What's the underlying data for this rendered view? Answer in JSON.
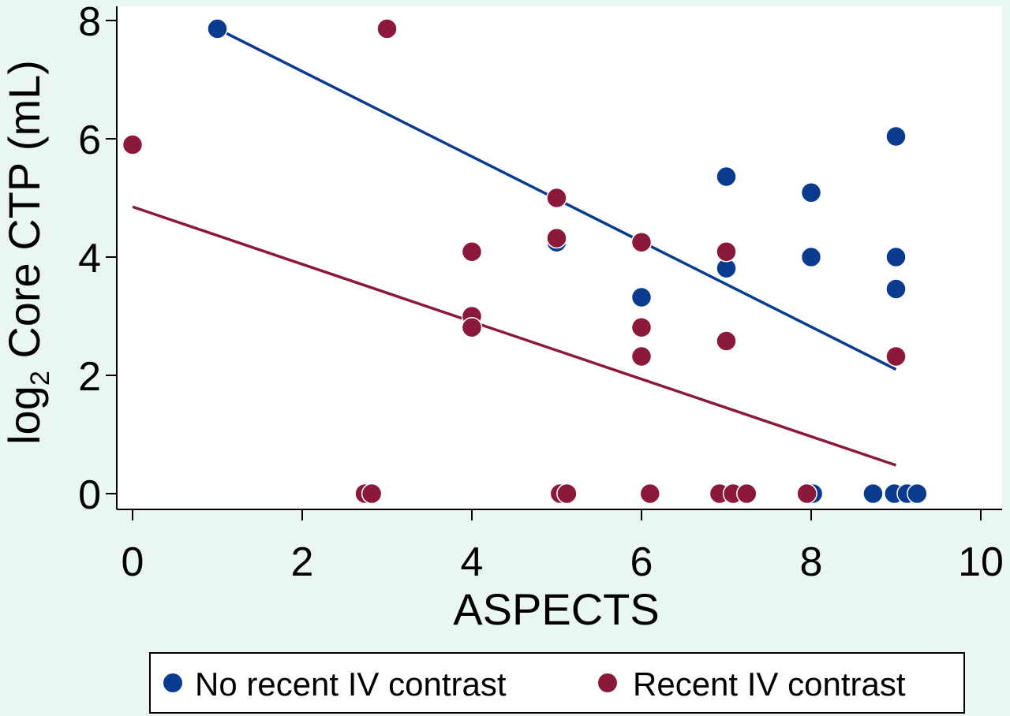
{
  "chart_data": {
    "type": "scatter",
    "xlabel": "ASPECTS",
    "ylabel": {
      "prefix": "log",
      "subscript": "2",
      "rest": " Core CTP (mL)"
    },
    "xlim": [
      0,
      10
    ],
    "ylim": [
      0,
      8
    ],
    "xticks": [
      {
        "value": 0,
        "label": "0"
      },
      {
        "value": 2,
        "label": "2"
      },
      {
        "value": 4,
        "label": "4"
      },
      {
        "value": 6,
        "label": "6"
      },
      {
        "value": 8,
        "label": "8"
      },
      {
        "value": 10,
        "label": "10"
      }
    ],
    "yticks": [
      {
        "value": 0,
        "label": "0"
      },
      {
        "value": 2,
        "label": "2"
      },
      {
        "value": 4,
        "label": "4"
      },
      {
        "value": 6,
        "label": "6"
      },
      {
        "value": 8,
        "label": "8"
      }
    ],
    "grid": false,
    "legend_position": "bottom",
    "background_color": "#eaf6f3",
    "plot_background_color": "#ffffff",
    "series": [
      {
        "name": "No recent IV contrast",
        "color": "#0b3b8f",
        "points": [
          {
            "x": 1,
            "y": 7.86
          },
          {
            "x": 5,
            "y": 4.25
          },
          {
            "x": 6,
            "y": 3.32
          },
          {
            "x": 7,
            "y": 5.36
          },
          {
            "x": 7,
            "y": 3.81
          },
          {
            "x": 8,
            "y": 5.09
          },
          {
            "x": 8,
            "y": 4.0
          },
          {
            "x": 9,
            "y": 6.04
          },
          {
            "x": 9,
            "y": 4.0
          },
          {
            "x": 9,
            "y": 3.46
          },
          {
            "x": 8.02,
            "y": 0
          },
          {
            "x": 8.73,
            "y": 0
          },
          {
            "x": 8.98,
            "y": 0
          },
          {
            "x": 9.13,
            "y": 0
          },
          {
            "x": 9.25,
            "y": 0
          }
        ],
        "fit_line": [
          {
            "x": 1,
            "y": 7.86
          },
          {
            "x": 9,
            "y": 2.1
          }
        ]
      },
      {
        "name": "Recent IV contrast",
        "color": "#8b1a3a",
        "points": [
          {
            "x": 0,
            "y": 5.9
          },
          {
            "x": 3,
            "y": 7.86
          },
          {
            "x": 4,
            "y": 4.09
          },
          {
            "x": 4,
            "y": 3.0
          },
          {
            "x": 4,
            "y": 2.81
          },
          {
            "x": 5,
            "y": 5.0
          },
          {
            "x": 5,
            "y": 4.32
          },
          {
            "x": 6,
            "y": 4.25
          },
          {
            "x": 6,
            "y": 2.81
          },
          {
            "x": 6,
            "y": 2.32
          },
          {
            "x": 7,
            "y": 4.09
          },
          {
            "x": 7,
            "y": 2.58
          },
          {
            "x": 9,
            "y": 2.32
          },
          {
            "x": 2.74,
            "y": 0
          },
          {
            "x": 2.82,
            "y": 0
          },
          {
            "x": 5.04,
            "y": 0
          },
          {
            "x": 5.12,
            "y": 0
          },
          {
            "x": 6.1,
            "y": 0
          },
          {
            "x": 6.92,
            "y": 0
          },
          {
            "x": 7.08,
            "y": 0
          },
          {
            "x": 7.24,
            "y": 0
          },
          {
            "x": 7.95,
            "y": 0
          }
        ],
        "fit_line": [
          {
            "x": 0,
            "y": 4.85
          },
          {
            "x": 9,
            "y": 0.48
          }
        ]
      }
    ]
  }
}
